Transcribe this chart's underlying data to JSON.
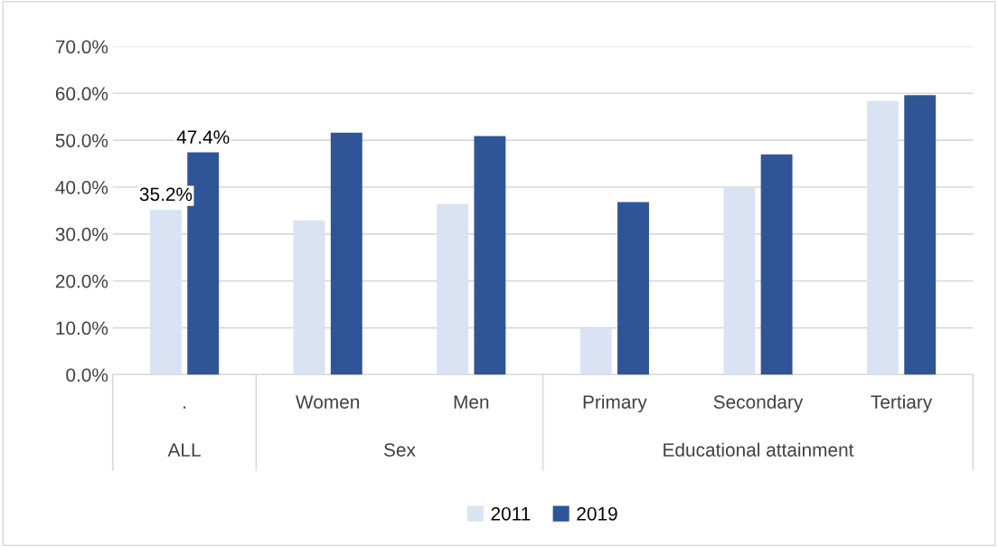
{
  "chart_data": {
    "type": "bar",
    "categories": [
      ".",
      "Women",
      "Men",
      "Primary",
      "Secondary",
      "Tertiary"
    ],
    "series": [
      {
        "name": "2011",
        "color": "#dae3f3",
        "values": [
          35.2,
          32.9,
          36.4,
          9.9,
          39.8,
          58.4
        ],
        "value_labels": [
          "35.2%",
          null,
          null,
          null,
          null,
          null
        ]
      },
      {
        "name": "2019",
        "color": "#2f5597",
        "values": [
          47.4,
          51.6,
          50.9,
          36.8,
          47.0,
          59.6
        ],
        "value_labels": [
          "47.4%",
          null,
          null,
          null,
          null,
          null
        ]
      }
    ],
    "annotations": [
      "ALL",
      "Sex",
      "Educational attainment"
    ],
    "ylim": [
      0,
      70
    ],
    "yticks": [
      {
        "value": 0,
        "label": "0.0%"
      },
      {
        "value": 10,
        "label": "10.0%"
      },
      {
        "value": 20,
        "label": "20.0%"
      },
      {
        "value": 30,
        "label": "30.0%"
      },
      {
        "value": 40,
        "label": "40.0%"
      },
      {
        "value": 50,
        "label": "50.0%"
      },
      {
        "value": 60,
        "label": "60.0%"
      },
      {
        "value": 70,
        "label": "70.0%"
      }
    ],
    "grid": "y",
    "legend": "bottom"
  }
}
